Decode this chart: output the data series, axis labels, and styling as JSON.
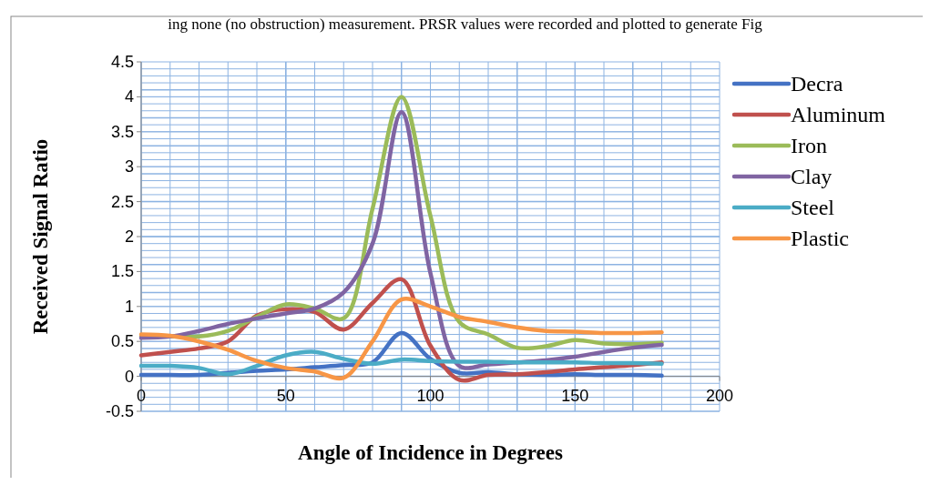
{
  "chart_data": {
    "type": "line",
    "xlabel": "Angle of Incidence in Degrees",
    "ylabel": "Received Signal Ratio",
    "annotations": [
      "ing none (no obstruction) measurement. PRSR values were recorded and plotted to generate Fig"
    ],
    "x": [
      0,
      10,
      20,
      30,
      40,
      50,
      60,
      70,
      80,
      90,
      100,
      110,
      120,
      130,
      140,
      150,
      160,
      170,
      180
    ],
    "xlim": [
      0,
      200
    ],
    "xticks": [
      0,
      50,
      100,
      150,
      200
    ],
    "ylim": [
      -0.5,
      4.5
    ],
    "yticks": [
      -0.5,
      0,
      0.5,
      1,
      1.5,
      2,
      2.5,
      3,
      3.5,
      4,
      4.5
    ],
    "grid": true,
    "legend": "right",
    "line_style": "solid",
    "marker": "none",
    "series": [
      {
        "name": "Decra",
        "color": "#4472c4",
        "values": [
          0.02,
          0.02,
          0.02,
          0.05,
          0.08,
          0.1,
          0.13,
          0.16,
          0.2,
          0.62,
          0.25,
          0.05,
          0.06,
          0.03,
          0.02,
          0.03,
          0.02,
          0.02,
          0.01
        ]
      },
      {
        "name": "Aluminum",
        "color": "#c0504d",
        "values": [
          0.3,
          0.35,
          0.4,
          0.5,
          0.87,
          0.96,
          0.92,
          0.67,
          1.05,
          1.39,
          0.44,
          -0.05,
          0.02,
          0.03,
          0.06,
          0.1,
          0.13,
          0.16,
          0.2
        ]
      },
      {
        "name": "Iron",
        "color": "#9bbb59",
        "values": [
          0.57,
          0.57,
          0.57,
          0.65,
          0.85,
          1.03,
          0.97,
          0.83,
          2.4,
          4.0,
          2.3,
          0.78,
          0.6,
          0.41,
          0.43,
          0.52,
          0.47,
          0.46,
          0.48
        ]
      },
      {
        "name": "Clay",
        "color": "#8064a2",
        "values": [
          0.55,
          0.57,
          0.65,
          0.75,
          0.83,
          0.9,
          0.97,
          1.2,
          1.9,
          3.78,
          1.48,
          0.15,
          0.17,
          0.2,
          0.23,
          0.28,
          0.35,
          0.41,
          0.45
        ]
      },
      {
        "name": "Steel",
        "color": "#4bacc6",
        "values": [
          0.15,
          0.15,
          0.12,
          0.03,
          0.15,
          0.3,
          0.35,
          0.25,
          0.18,
          0.24,
          0.22,
          0.21,
          0.21,
          0.2,
          0.2,
          0.2,
          0.19,
          0.19,
          0.18
        ]
      },
      {
        "name": "Plastic",
        "color": "#f79646",
        "values": [
          0.6,
          0.58,
          0.5,
          0.38,
          0.22,
          0.12,
          0.07,
          -0.02,
          0.5,
          1.1,
          1.0,
          0.85,
          0.78,
          0.7,
          0.65,
          0.64,
          0.62,
          0.62,
          0.63
        ]
      }
    ]
  }
}
